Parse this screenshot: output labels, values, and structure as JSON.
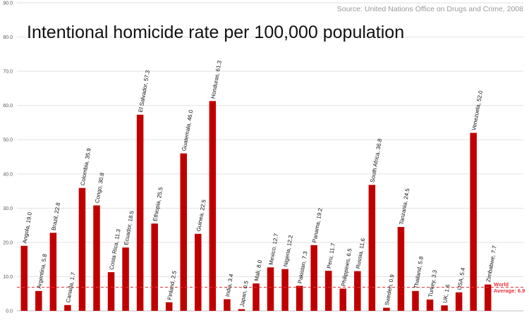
{
  "source": "Source: United Nations Office on Drugs and Crime, 2008",
  "chart_data": {
    "type": "bar",
    "title": "Intentional homicide rate per 100,000 population",
    "xlabel": "",
    "ylabel": "",
    "ylim": [
      0,
      90
    ],
    "yticks": [
      "0.0",
      "10.0",
      "20.0",
      "30.0",
      "40.0",
      "50.0",
      "60.0",
      "70.0",
      "80.0",
      "90.0"
    ],
    "grid": true,
    "bar_color": "#c00000",
    "categories": [
      "Angola",
      "Argentina",
      "Brazil",
      "Canada",
      "Colombia",
      "Congo",
      "Costa Rica",
      "Ecuador",
      "El Salvador",
      "Ethiopia",
      "Finland",
      "Guatemala",
      "Guinea",
      "Honduras",
      "India",
      "Japan",
      "Mali",
      "Mexico",
      "Nigeria",
      "Pakistan",
      "Panama",
      "Peru",
      "Philippines",
      "Russia",
      "South Africa",
      "Sweden",
      "Tanzania",
      "Thailand",
      "Turkey",
      "UK",
      "USA",
      "Venezuela",
      "Zimbabwe"
    ],
    "values": [
      19.0,
      5.8,
      22.8,
      1.7,
      35.9,
      30.8,
      11.3,
      18.5,
      57.3,
      25.5,
      2.5,
      46.0,
      22.5,
      61.3,
      3.4,
      0.5,
      8.0,
      12.7,
      12.2,
      7.3,
      19.2,
      11.7,
      6.5,
      11.6,
      36.8,
      0.9,
      24.5,
      5.8,
      3.3,
      1.6,
      5.4,
      52.0,
      7.7
    ],
    "data_labels": [
      "Angola, 19.0",
      "Argentina, 5.8",
      "Brazil, 22.8",
      "Canada, 1.7",
      "Colombia, 35.9",
      "Congo, 30.8",
      "Costa Rica, 11.3",
      "Ecuador, 18.5",
      "El Salvador, 57.3",
      "Ethiopia, 25.5",
      "Finland, 2.5",
      "Guatemala, 46.0",
      "Guinea, 22.5",
      "Honduras, 61.3",
      "India, 3.4",
      "Japan, 0.5",
      "Mali, 8.0",
      "Mexico, 12.7",
      "Nigeria, 12.2",
      "Pakistan, 7.3",
      "Panama, 19.2",
      "Peru, 11.7",
      "Philippines, 6.5",
      "Russia, 11.6",
      "South Africa, 36.8",
      "Sweden, 0.9",
      "Tanzania, 24.5",
      "Thailand, 5.8",
      "Turkey, 3.3",
      "UK, 1.6",
      "USA, 5.4",
      "Venezuela, 52.0",
      "Zimbabwe, 7.7"
    ],
    "reference_line": {
      "value": 6.9,
      "color": "#e8313a",
      "label_line1": "World",
      "label_line2": "Average: 6.9"
    }
  }
}
